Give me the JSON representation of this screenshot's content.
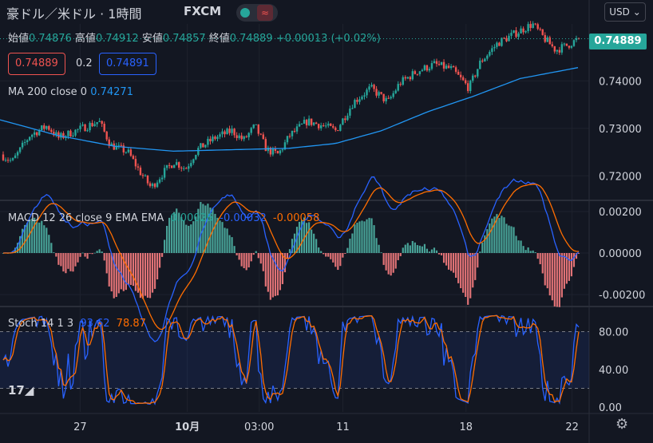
{
  "header": {
    "symbol": "豪ドル／米ドル · 1時間",
    "feed": "FXCM",
    "currency": "USD",
    "ohlc": {
      "open_label": "始値",
      "open": "0.74876",
      "high_label": "高値",
      "high": "0.74912",
      "low_label": "安値",
      "low": "0.74857",
      "close_label": "終値",
      "close": "0.74889",
      "change": "+0.00013 (+0.02%)"
    },
    "sell_price": "0.74889",
    "spread": "0.2",
    "buy_price": "0.74891"
  },
  "colors": {
    "background": "#131722",
    "up": "#26a69a",
    "down": "#ef5350",
    "ma": "#2196f3",
    "macd_line": "#2962ff",
    "macd_signal": "#ff6d00",
    "stoch_k": "#2962ff",
    "stoch_d": "#ff6d00"
  },
  "chart_data": [
    {
      "type": "candlestick",
      "title": "豪ドル／米ドル · 1時間 · FXCM",
      "last_price": 0.74889,
      "last_price_label": "0.74889",
      "ylim": [
        0.715,
        0.752
      ],
      "y_ticks": [
        0.72,
        0.73,
        0.74
      ],
      "y_tick_labels": [
        "0.72000",
        "0.73000",
        "0.74000"
      ],
      "x_tick_labels": [
        "27",
        "10月",
        "03:00",
        "11",
        "18",
        "22"
      ],
      "x_tick_pos": [
        0.136,
        0.318,
        0.44,
        0.582,
        0.791,
        0.971
      ],
      "price_anchors": [
        [
          0,
          0.7245
        ],
        [
          0.02,
          0.723
        ],
        [
          0.05,
          0.7285
        ],
        [
          0.08,
          0.7305
        ],
        [
          0.1,
          0.728
        ],
        [
          0.13,
          0.7295
        ],
        [
          0.17,
          0.7315
        ],
        [
          0.19,
          0.7265
        ],
        [
          0.22,
          0.725
        ],
        [
          0.24,
          0.721
        ],
        [
          0.26,
          0.7175
        ],
        [
          0.28,
          0.7205
        ],
        [
          0.3,
          0.723
        ],
        [
          0.32,
          0.7215
        ],
        [
          0.34,
          0.7255
        ],
        [
          0.37,
          0.728
        ],
        [
          0.4,
          0.7295
        ],
        [
          0.42,
          0.7275
        ],
        [
          0.44,
          0.7305
        ],
        [
          0.46,
          0.7255
        ],
        [
          0.48,
          0.7245
        ],
        [
          0.5,
          0.7285
        ],
        [
          0.53,
          0.7315
        ],
        [
          0.56,
          0.7305
        ],
        [
          0.58,
          0.7295
        ],
        [
          0.61,
          0.7355
        ],
        [
          0.64,
          0.7385
        ],
        [
          0.67,
          0.7355
        ],
        [
          0.69,
          0.7395
        ],
        [
          0.72,
          0.742
        ],
        [
          0.75,
          0.7435
        ],
        [
          0.78,
          0.7425
        ],
        [
          0.81,
          0.7385
        ],
        [
          0.83,
          0.744
        ],
        [
          0.86,
          0.748
        ],
        [
          0.89,
          0.75
        ],
        [
          0.92,
          0.752
        ],
        [
          0.94,
          0.749
        ],
        [
          0.96,
          0.7465
        ],
        [
          0.98,
          0.7475
        ],
        [
          1.0,
          0.7489
        ]
      ],
      "ma": {
        "name": "MA 200 close 0",
        "value_label": "0.74271",
        "anchors": [
          [
            0,
            0.7318
          ],
          [
            0.1,
            0.7285
          ],
          [
            0.2,
            0.7262
          ],
          [
            0.3,
            0.7252
          ],
          [
            0.4,
            0.7255
          ],
          [
            0.5,
            0.7258
          ],
          [
            0.58,
            0.7268
          ],
          [
            0.66,
            0.7295
          ],
          [
            0.74,
            0.7335
          ],
          [
            0.82,
            0.7368
          ],
          [
            0.9,
            0.7405
          ],
          [
            1.0,
            0.7428
          ]
        ]
      }
    },
    {
      "type": "macd",
      "title": "MACD 12 26 close 9 EMA EMA",
      "values_labels": {
        "histogram": "0.00026",
        "macd": "-0.00032",
        "signal": "-0.00058"
      },
      "ylim": [
        -0.0025,
        0.0025
      ],
      "y_ticks": [
        -0.002,
        0.0,
        0.002
      ],
      "y_tick_labels": [
        "-0.00200",
        "0.00000",
        "0.00200"
      ]
    },
    {
      "type": "stochastic",
      "title": "Stoch 14 1 3",
      "values_labels": {
        "k": "93.62",
        "d": "78.87"
      },
      "ylim": [
        -5,
        105
      ],
      "bands": [
        20,
        80
      ],
      "y_ticks": [
        0,
        40,
        80
      ],
      "y_tick_labels": [
        "0.00",
        "40.00",
        "80.00"
      ]
    }
  ]
}
